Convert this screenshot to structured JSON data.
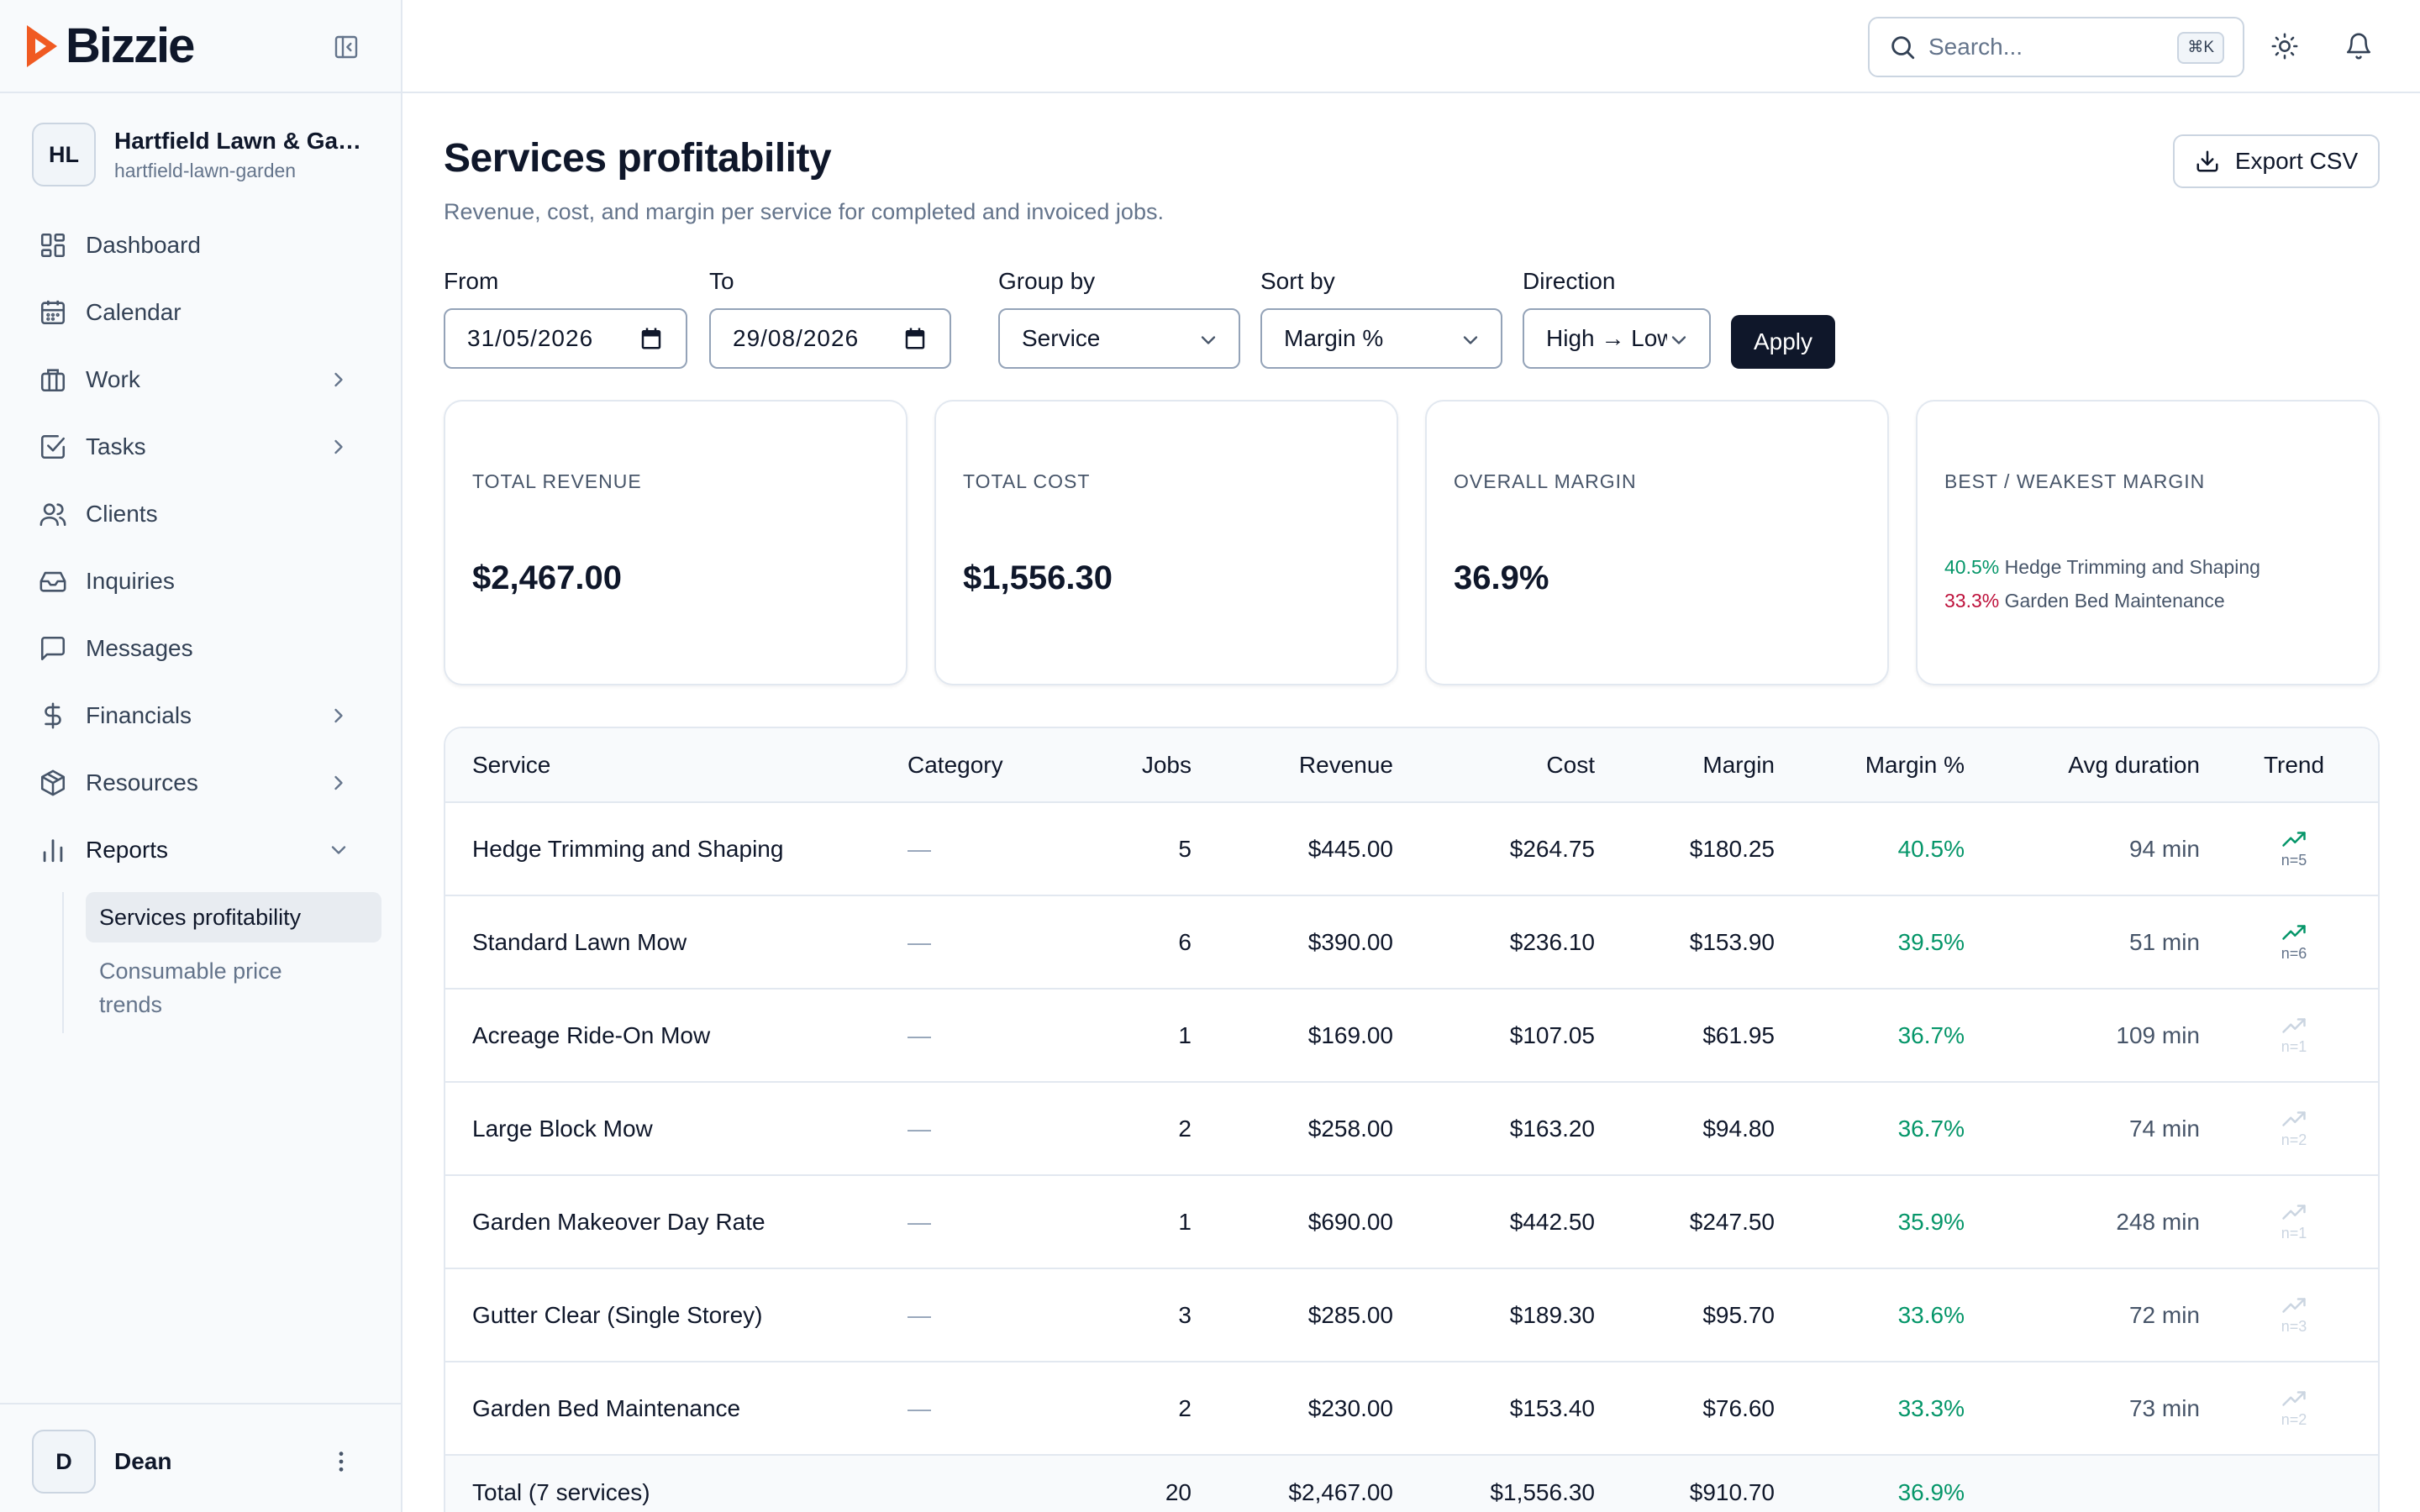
{
  "brand": {
    "name": "Bizzie",
    "accent": "#f05a22"
  },
  "org": {
    "initials": "HL",
    "name": "Hartfield Lawn & Garden",
    "slug": "hartfield-lawn-garden"
  },
  "nav": {
    "items": [
      {
        "label": "Dashboard",
        "icon": "dashboard-icon"
      },
      {
        "label": "Calendar",
        "icon": "calendar-icon"
      },
      {
        "label": "Work",
        "icon": "briefcase-icon"
      },
      {
        "label": "Tasks",
        "icon": "checkbox-icon"
      },
      {
        "label": "Clients",
        "icon": "users-icon"
      },
      {
        "label": "Inquiries",
        "icon": "inbox-icon"
      },
      {
        "label": "Messages",
        "icon": "message-icon"
      },
      {
        "label": "Financials",
        "icon": "dollar-icon"
      },
      {
        "label": "Resources",
        "icon": "package-icon"
      },
      {
        "label": "Reports",
        "icon": "bar-chart-icon"
      }
    ],
    "reports_sub": [
      {
        "label": "Services profitability",
        "active": true
      },
      {
        "label": "Consumable price trends",
        "active": false
      }
    ]
  },
  "user": {
    "initial": "D",
    "name": "Dean"
  },
  "topbar": {
    "search_placeholder": "Search...",
    "search_shortcut": "⌘K"
  },
  "page": {
    "title": "Services profitability",
    "subtitle": "Revenue, cost, and margin per service for completed and invoiced jobs.",
    "export_label": "Export CSV"
  },
  "filters": {
    "from": {
      "label": "From",
      "value": "31/05/2026"
    },
    "to": {
      "label": "To",
      "value": "29/08/2026"
    },
    "group_by": {
      "label": "Group by",
      "value": "Service"
    },
    "sort_by": {
      "label": "Sort by",
      "value": "Margin %"
    },
    "direction": {
      "label": "Direction",
      "value": "High → Low"
    },
    "apply_label": "Apply"
  },
  "cards": {
    "revenue": {
      "label": "Total revenue",
      "value": "$2,467.00"
    },
    "cost": {
      "label": "Total cost",
      "value": "$1,556.30"
    },
    "margin": {
      "label": "Overall margin",
      "value": "36.9%"
    },
    "best_weakest": {
      "label": "Best / weakest margin",
      "best_pct": "40.5%",
      "best_name": "Hedge Trimming and Shaping",
      "weakest_pct": "33.3%",
      "weakest_name": "Garden Bed Maintenance"
    }
  },
  "table": {
    "columns": [
      "Service",
      "Category",
      "Jobs",
      "Revenue",
      "Cost",
      "Margin",
      "Margin %",
      "Avg duration",
      "Trend"
    ],
    "rows": [
      {
        "service": "Hedge Trimming and Shaping",
        "category": "—",
        "jobs": "5",
        "revenue": "$445.00",
        "cost": "$264.75",
        "margin": "$180.25",
        "margin_pct": "40.5%",
        "avg_duration": "94 min",
        "trend_n": "n=5",
        "trend_active": true
      },
      {
        "service": "Standard Lawn Mow",
        "category": "—",
        "jobs": "6",
        "revenue": "$390.00",
        "cost": "$236.10",
        "margin": "$153.90",
        "margin_pct": "39.5%",
        "avg_duration": "51 min",
        "trend_n": "n=6",
        "trend_active": true
      },
      {
        "service": "Acreage Ride-On Mow",
        "category": "—",
        "jobs": "1",
        "revenue": "$169.00",
        "cost": "$107.05",
        "margin": "$61.95",
        "margin_pct": "36.7%",
        "avg_duration": "109 min",
        "trend_n": "n=1",
        "trend_active": false
      },
      {
        "service": "Large Block Mow",
        "category": "—",
        "jobs": "2",
        "revenue": "$258.00",
        "cost": "$163.20",
        "margin": "$94.80",
        "margin_pct": "36.7%",
        "avg_duration": "74 min",
        "trend_n": "n=2",
        "trend_active": false
      },
      {
        "service": "Garden Makeover Day Rate",
        "category": "—",
        "jobs": "1",
        "revenue": "$690.00",
        "cost": "$442.50",
        "margin": "$247.50",
        "margin_pct": "35.9%",
        "avg_duration": "248 min",
        "trend_n": "n=1",
        "trend_active": false
      },
      {
        "service": "Gutter Clear (Single Storey)",
        "category": "—",
        "jobs": "3",
        "revenue": "$285.00",
        "cost": "$189.30",
        "margin": "$95.70",
        "margin_pct": "33.6%",
        "avg_duration": "72 min",
        "trend_n": "n=3",
        "trend_active": false
      },
      {
        "service": "Garden Bed Maintenance",
        "category": "—",
        "jobs": "2",
        "revenue": "$230.00",
        "cost": "$153.40",
        "margin": "$76.60",
        "margin_pct": "33.3%",
        "avg_duration": "73 min",
        "trend_n": "n=2",
        "trend_active": false
      }
    ],
    "total": {
      "label": "Total (7 services)",
      "jobs": "20",
      "revenue": "$2,467.00",
      "cost": "$1,556.30",
      "margin": "$910.70",
      "margin_pct": "36.9%"
    }
  },
  "colors": {
    "positive": "#059669",
    "negative": "#be123c",
    "primary": "#0f172a"
  }
}
